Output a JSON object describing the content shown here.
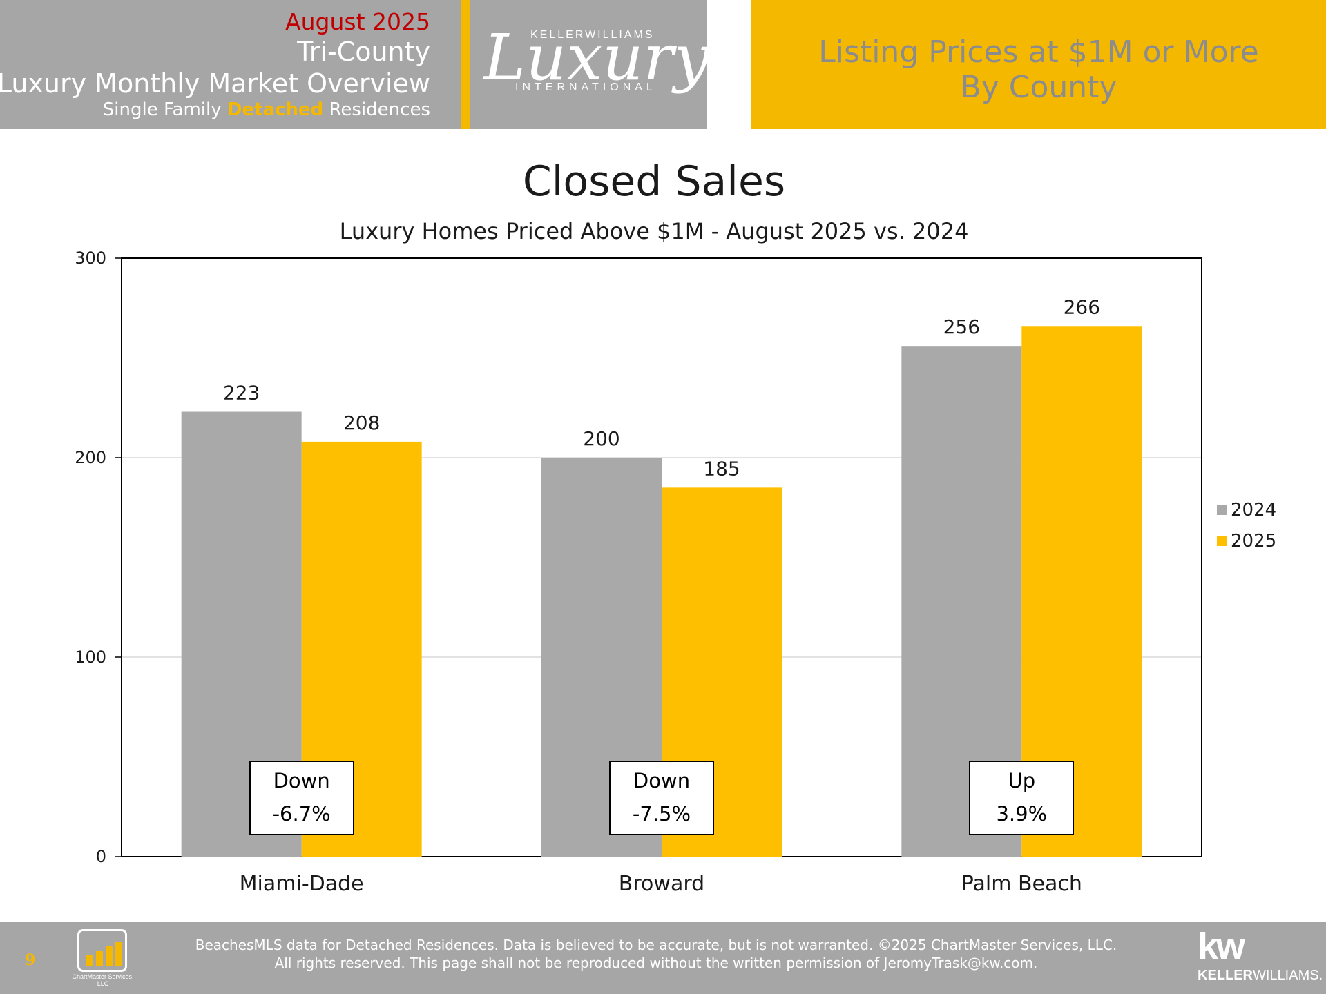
{
  "header": {
    "date": "August 2025",
    "region": "Tri-County",
    "title": "Luxury Monthly Market Overview",
    "subtitle_pre": "Single Family ",
    "subtitle_accent": "Detached",
    "subtitle_post": " Residences",
    "logo_top": "KELLERWILLIAMS",
    "logo_script": "Luxury",
    "logo_bottom": "INTERNATIONAL",
    "right_line1": "Listing Prices at $1M or More",
    "right_line2": "By County"
  },
  "chart_data": {
    "type": "bar",
    "title": "Closed Sales",
    "subtitle": "Luxury Homes Priced Above $1M - August 2025 vs. 2024",
    "categories": [
      "Miami-Dade",
      "Broward",
      "Palm Beach"
    ],
    "series": [
      {
        "name": "2024",
        "values": [
          223,
          200,
          256
        ],
        "color": "#a9a9a9"
      },
      {
        "name": "2025",
        "values": [
          208,
          185,
          266
        ],
        "color": "#fdbf00"
      }
    ],
    "ylim": [
      0,
      300
    ],
    "yticks": [
      0,
      100,
      200,
      300
    ],
    "grid": true,
    "legend_position": "right",
    "annotations": [
      {
        "line1": "Down",
        "line2": "-6.7%"
      },
      {
        "line1": "Down",
        "line2": "-7.5%"
      },
      {
        "line1": "Up",
        "line2": "3.9%"
      }
    ]
  },
  "footer": {
    "page_number": "9",
    "line1": "BeachesMLS data for Detached Residences.  Data is believed to be accurate, but is not warranted.   ©2025  ChartMaster Services, LLC.",
    "line2": "All rights reserved. This page shall not be reproduced without the written permission of JeromyTrask@kw.com.",
    "chartmaster_logo_text": "ChartMaster Services, LLC",
    "kw_mark": "kw",
    "kw_word_bold": "KELLER",
    "kw_word_rest": "WILLIAMS."
  }
}
